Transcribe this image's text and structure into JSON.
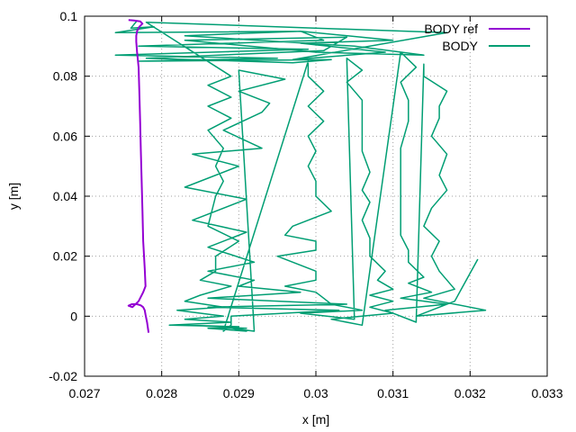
{
  "chart_data": {
    "type": "line",
    "xlabel": "x [m]",
    "ylabel": "y [m]",
    "xlim": [
      0.027,
      0.033
    ],
    "ylim": [
      -0.02,
      0.1
    ],
    "xticks": [
      "0.027",
      "0.028",
      "0.029",
      "0.03",
      "0.031",
      "0.032",
      "0.033"
    ],
    "yticks": [
      "-0.02",
      "0",
      "0.02",
      "0.04",
      "0.06",
      "0.08",
      "0.1"
    ],
    "grid": true,
    "legend_position": "top-right",
    "series": [
      {
        "name": "BODY ref",
        "color": "#9400d3",
        "x": [
          0.02783,
          0.02781,
          0.02779,
          0.02778,
          0.02776,
          0.02773,
          0.02768,
          0.02761,
          0.02757,
          0.02762,
          0.0277,
          0.02776,
          0.02779,
          0.02778,
          0.02776,
          0.02775,
          0.02774,
          0.02773,
          0.02772,
          0.02771,
          0.0277,
          0.02768,
          0.02767,
          0.02767,
          0.02768,
          0.02771,
          0.02775,
          0.02772,
          0.02764,
          0.02757
        ],
        "y": [
          -0.0055,
          -0.002,
          0.0005,
          0.002,
          0.003,
          0.0036,
          0.004,
          0.004,
          0.0035,
          0.003,
          0.005,
          0.008,
          0.01,
          0.016,
          0.025,
          0.035,
          0.045,
          0.055,
          0.065,
          0.075,
          0.083,
          0.088,
          0.0915,
          0.0935,
          0.095,
          0.0965,
          0.0975,
          0.0983,
          0.0986,
          0.0987
        ]
      },
      {
        "name": "BODY",
        "color": "#009e73",
        "x": [
          0.02768,
          0.0276,
          0.0279,
          0.0274,
          0.0298,
          0.0301,
          0.0277,
          0.0299,
          0.0274,
          0.0295,
          0.0277,
          0.0302,
          0.0297,
          0.0278,
          0.0301,
          0.0304,
          0.0283,
          0.03,
          0.0314,
          0.0305,
          0.0283,
          0.0298,
          0.031,
          0.0298,
          0.0309,
          0.0297,
          0.0317,
          0.0278,
          0.0289,
          0.0286,
          0.0289,
          0.0286,
          0.0289,
          0.0286,
          0.0288,
          0.0287,
          0.0288,
          0.0287,
          0.0286,
          0.029,
          0.0287,
          0.0287,
          0.0285,
          0.0289,
          0.0285,
          0.0283,
          0.0288,
          0.0282,
          0.0288,
          0.0283,
          0.0289,
          0.0281,
          0.029,
          0.0283,
          0.0291,
          0.0286,
          0.0291,
          0.0289,
          0.0292,
          0.029,
          0.0296,
          0.029,
          0.0294,
          0.0293,
          0.0288,
          0.0293,
          0.0284,
          0.029,
          0.0283,
          0.0291,
          0.0284,
          0.0291,
          0.0286,
          0.0292,
          0.0286,
          0.0292,
          0.029,
          0.0298,
          0.0286,
          0.0304,
          0.0286,
          0.0303,
          0.0289,
          0.0289,
          0.0288,
          0.0299,
          0.0299,
          0.0301,
          0.0299,
          0.0301,
          0.0299,
          0.03,
          0.0299,
          0.03,
          0.03,
          0.0302,
          0.0297,
          0.0296,
          0.03,
          0.03,
          0.0295,
          0.03,
          0.03,
          0.0296,
          0.03,
          0.0301,
          0.0302,
          0.0306,
          0.0298,
          0.0305,
          0.0304,
          0.0306,
          0.0304,
          0.0306,
          0.0306,
          0.0306,
          0.0306,
          0.0307,
          0.0306,
          0.0307,
          0.0306,
          0.0307,
          0.0307,
          0.0309,
          0.0308,
          0.031,
          0.0307,
          0.031,
          0.0307,
          0.031,
          0.0306,
          0.0302,
          0.0306,
          0.0311,
          0.0313,
          0.0311,
          0.0312,
          0.0312,
          0.0311,
          0.0311,
          0.0311,
          0.0311,
          0.0311,
          0.0312,
          0.0312,
          0.0314,
          0.0312,
          0.0315,
          0.0311,
          0.0317,
          0.0309,
          0.0313,
          0.0314,
          0.0314,
          0.0317,
          0.0316,
          0.0316,
          0.0315,
          0.0317,
          0.0316,
          0.0317,
          0.0315,
          0.0314,
          0.0316,
          0.0315,
          0.0316,
          0.0318,
          0.0314,
          0.0322,
          0.0313,
          0.0318,
          0.0321
        ],
        "y": [
          0.0985,
          0.096,
          0.0965,
          0.0945,
          0.095,
          0.092,
          0.09,
          0.089,
          0.087,
          0.086,
          0.085,
          0.0855,
          0.0845,
          0.086,
          0.0885,
          0.093,
          0.092,
          0.088,
          0.087,
          0.09,
          0.0935,
          0.095,
          0.092,
          0.091,
          0.088,
          0.0855,
          0.0945,
          0.098,
          0.08,
          0.077,
          0.073,
          0.07,
          0.066,
          0.062,
          0.056,
          0.05,
          0.045,
          0.04,
          0.03,
          0.025,
          0.02,
          0.015,
          0.012,
          0.01,
          0.007,
          0.005,
          0.003,
          0.002,
          0.0,
          -0.001,
          -0.002,
          -0.003,
          -0.0035,
          -0.003,
          -0.004,
          -0.004,
          -0.005,
          -0.004,
          -0.005,
          0.082,
          0.079,
          0.075,
          0.071,
          0.068,
          0.062,
          0.056,
          0.054,
          0.05,
          0.043,
          0.039,
          0.032,
          0.028,
          0.023,
          0.018,
          0.015,
          0.012,
          0.01,
          0.008,
          0.006,
          0.004,
          0.003,
          0.002,
          0.0,
          -0.003,
          -0.005,
          0.085,
          0.08,
          0.075,
          0.07,
          0.065,
          0.06,
          0.055,
          0.05,
          0.045,
          0.04,
          0.035,
          0.03,
          0.027,
          0.025,
          0.022,
          0.02,
          0.015,
          0.012,
          0.01,
          0.008,
          0.006,
          0.004,
          0.002,
          0.001,
          -0.001,
          0.086,
          0.082,
          0.078,
          0.072,
          0.068,
          0.062,
          0.055,
          0.048,
          0.042,
          0.038,
          0.032,
          0.026,
          0.02,
          0.015,
          0.012,
          0.009,
          0.007,
          0.005,
          0.003,
          0.001,
          0.0,
          -0.001,
          -0.003,
          0.088,
          0.083,
          0.078,
          0.072,
          0.065,
          0.056,
          0.048,
          0.04,
          0.033,
          0.027,
          0.022,
          0.018,
          0.013,
          0.011,
          0.008,
          0.006,
          0.004,
          0.002,
          -0.002,
          0.084,
          0.08,
          0.075,
          0.07,
          0.066,
          0.06,
          0.054,
          0.047,
          0.042,
          0.036,
          0.03,
          0.025,
          0.02,
          0.015,
          0.009,
          0.006,
          0.002,
          0.0,
          0.005,
          0.019
        ]
      }
    ]
  }
}
